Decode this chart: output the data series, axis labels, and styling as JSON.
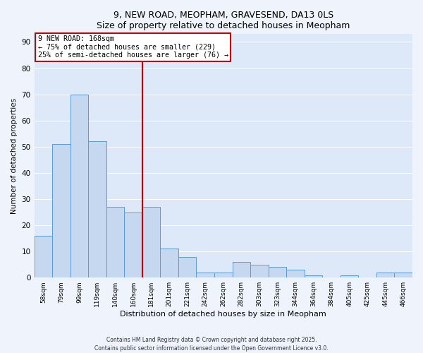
{
  "title_line1": "9, NEW ROAD, MEOPHAM, GRAVESEND, DA13 0LS",
  "title_line2": "Size of property relative to detached houses in Meopham",
  "xlabel": "Distribution of detached houses by size in Meopham",
  "ylabel": "Number of detached properties",
  "categories": [
    "58sqm",
    "79sqm",
    "99sqm",
    "119sqm",
    "140sqm",
    "160sqm",
    "181sqm",
    "201sqm",
    "221sqm",
    "242sqm",
    "262sqm",
    "282sqm",
    "303sqm",
    "323sqm",
    "344sqm",
    "364sqm",
    "384sqm",
    "405sqm",
    "425sqm",
    "445sqm",
    "466sqm"
  ],
  "values": [
    16,
    51,
    70,
    52,
    27,
    25,
    27,
    11,
    8,
    2,
    2,
    6,
    5,
    4,
    3,
    1,
    0,
    1,
    0,
    2,
    2
  ],
  "bar_color": "#c5d8f0",
  "bar_edge_color": "#5b9bd5",
  "background_color": "#dde8f8",
  "fig_background_color": "#eef3fc",
  "red_line_x": 6.0,
  "annotation_line1": "9 NEW ROAD: 168sqm",
  "annotation_line2": "← 75% of detached houses are smaller (229)",
  "annotation_line3": "25% of semi-detached houses are larger (76) →",
  "annotation_box_color": "#ffffff",
  "annotation_box_edge": "#cc0000",
  "red_line_color": "#cc0000",
  "ylim": [
    0,
    93
  ],
  "yticks": [
    0,
    10,
    20,
    30,
    40,
    50,
    60,
    70,
    80,
    90
  ],
  "footer_line1": "Contains HM Land Registry data © Crown copyright and database right 2025.",
  "footer_line2": "Contains public sector information licensed under the Open Government Licence v3.0."
}
